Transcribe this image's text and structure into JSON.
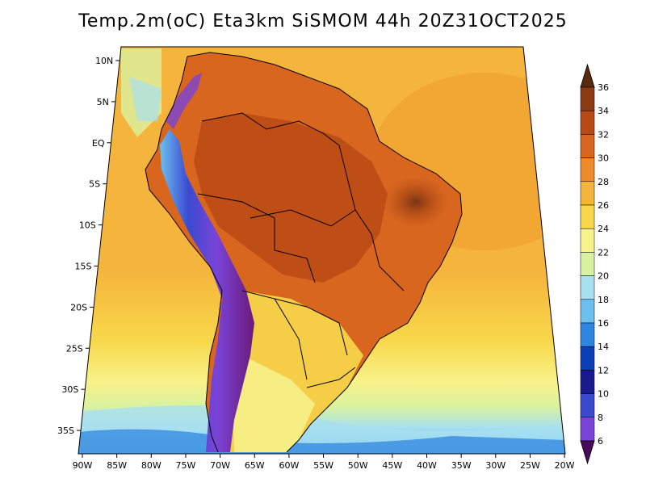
{
  "title": "Temp.2m(oC) Eta3km SiSMOM 44h 20Z31OCT2025",
  "axes": {
    "lat_labels": [
      "10N",
      "5N",
      "EQ",
      "5S",
      "10S",
      "15S",
      "20S",
      "25S",
      "30S",
      "35S"
    ],
    "lon_labels": [
      "90W",
      "85W",
      "80W",
      "75W",
      "70W",
      "65W",
      "60W",
      "55W",
      "50W",
      "45W",
      "40W",
      "35W",
      "30W",
      "25W",
      "20W"
    ]
  },
  "colorbar": {
    "labels": [
      "36",
      "34",
      "32",
      "30",
      "28",
      "26",
      "24",
      "22",
      "20",
      "18",
      "16",
      "14",
      "12",
      "10",
      "8",
      "6"
    ],
    "colors": [
      "#5a2a10",
      "#8b3a12",
      "#b84a15",
      "#d9661f",
      "#ee8a2a",
      "#f5b43c",
      "#f8d84a",
      "#f7f28a",
      "#d9f2a0",
      "#a8e0f0",
      "#6cc0ee",
      "#2f86e0",
      "#0b3fb8",
      "#1a1a8f",
      "#3a4ad0",
      "#7a44d8",
      "#9a38b8",
      "#6b1a7a",
      "#4a0a5a"
    ]
  },
  "colors": {
    "ocean_warm": "#f5b43c",
    "ocean_mid": "#f8d84a",
    "ocean_cool": "#d9f2a0",
    "ocean_cold": "#6cc0ee",
    "land_hot": "#d9661f",
    "land_very_hot": "#b84a15",
    "andes_cold": "#6b1a7a"
  }
}
